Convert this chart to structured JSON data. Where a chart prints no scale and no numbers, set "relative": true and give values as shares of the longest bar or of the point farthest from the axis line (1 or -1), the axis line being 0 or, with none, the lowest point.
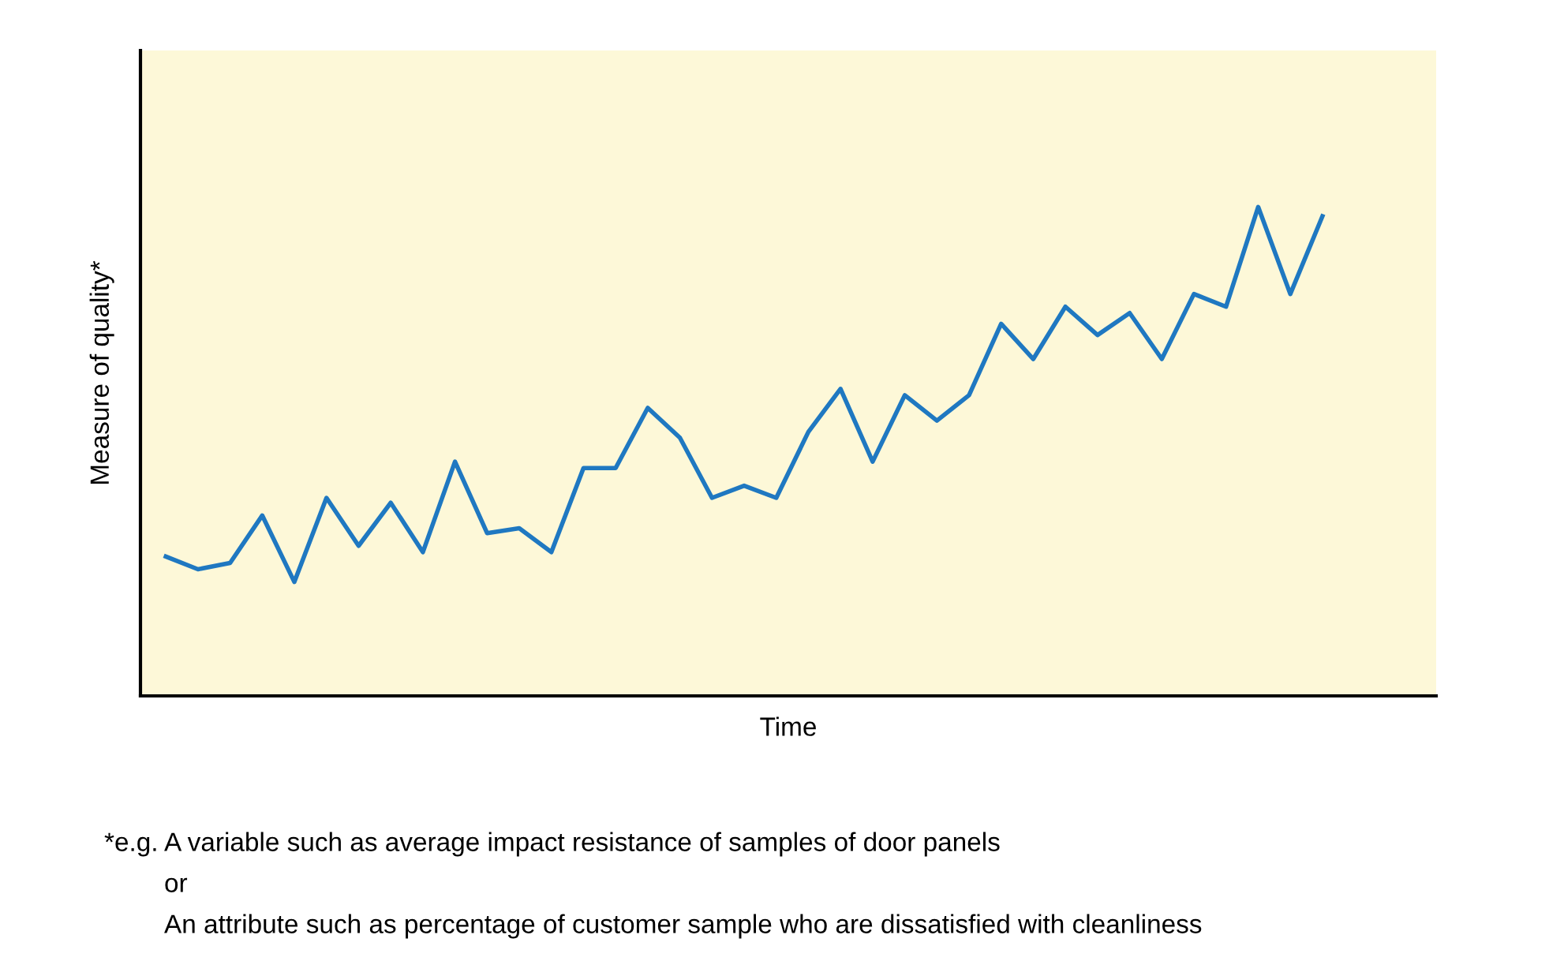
{
  "chart_data": {
    "type": "line",
    "relative": true,
    "xlabel": "Time",
    "ylabel": "Measure of quality*",
    "categories": [
      null,
      null,
      null,
      null,
      null,
      null,
      null,
      null,
      null,
      null,
      null,
      null,
      null,
      null,
      null,
      null,
      null,
      null,
      null,
      null,
      null,
      null,
      null,
      null,
      null,
      null,
      null,
      null,
      null,
      null,
      null,
      null,
      null,
      null,
      null,
      null,
      null
    ],
    "series": [
      {
        "color": "#1f78c1",
        "values": [
          0.285,
          0.259,
          0.272,
          0.369,
          0.233,
          0.405,
          0.307,
          0.395,
          0.294,
          0.479,
          0.333,
          0.343,
          0.294,
          0.466,
          0.466,
          0.589,
          0.528,
          0.405,
          0.43,
          0.405,
          0.54,
          0.628,
          0.479,
          0.615,
          0.563,
          0.615,
          0.761,
          0.689,
          0.796,
          0.738,
          0.783,
          0.689,
          0.822,
          0.796,
          1,
          0.822,
          0.981
        ]
      }
    ],
    "grid": false,
    "legend": false,
    "marker": "none",
    "line_style": "solid",
    "annotations": [
      "*e.g. A variable such as average impact resistance of samples of door panels",
      "or",
      "An attribute such as percentage of customer sample who are dissatisfied with cleanliness"
    ]
  }
}
